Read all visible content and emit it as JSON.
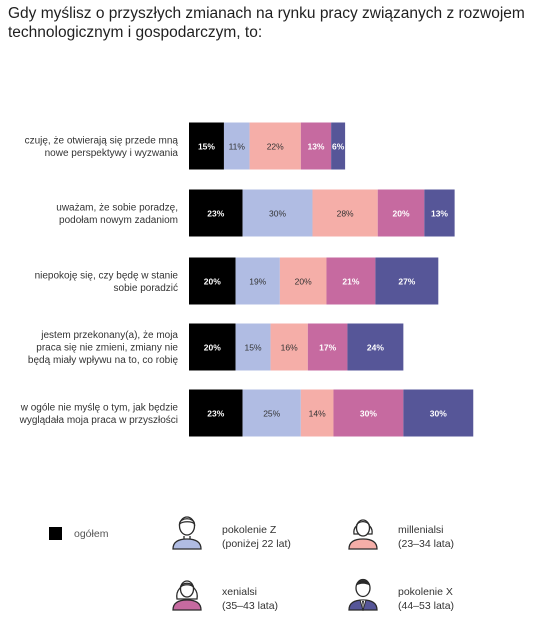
{
  "title": "Gdy myślisz o przyszłych zmianach na rynku pracy związanych z rozwojem technologicznym i gospodarczym, to:",
  "colors": {
    "ogolem": "#000000",
    "pokolenie_z": "#b0bce3",
    "millenialsi": "#f5aea8",
    "xenialsi": "#c66aa0",
    "pokolenie_x": "#565698"
  },
  "chart_data": {
    "type": "bar",
    "orientation": "horizontal",
    "stacked": true,
    "categories": [
      [
        "czuję, że otwierają się przede mną",
        "nowe perspektywy i wyzwania"
      ],
      [
        "uważam, że sobie poradzę,",
        "podołam nowym zadaniom"
      ],
      [
        "niepokoję się, czy będę w stanie",
        "sobie poradzić"
      ],
      [
        "jestem przekonany(a), że moja",
        "praca się nie zmieni, zmiany nie",
        "będą miały wpływu na to, co robię"
      ],
      [
        "w ogóle nie myślę o tym, jak będzie",
        "wyglądała moja praca w przyszłości"
      ]
    ],
    "series": [
      {
        "name": "ogółem",
        "values": [
          15,
          23,
          20,
          20,
          23
        ],
        "labels": [
          "15%",
          "23%",
          "20%",
          "20%",
          "23%"
        ]
      },
      {
        "name": "pokolenie Z",
        "values": [
          11,
          30,
          19,
          15,
          25
        ],
        "labels": [
          "11%",
          "30%",
          "19%",
          "15%",
          "25%"
        ]
      },
      {
        "name": "millenialsi",
        "values": [
          22,
          28,
          20,
          16,
          14
        ],
        "labels": [
          "22%",
          "28%",
          "20%",
          "16%",
          "14%"
        ]
      },
      {
        "name": "xenialsi",
        "values": [
          13,
          20,
          21,
          17,
          30
        ],
        "labels": [
          "13%",
          "20%",
          "21%",
          "17%",
          "30%"
        ]
      },
      {
        "name": "pokolenie X",
        "values": [
          6,
          13,
          27,
          24,
          30
        ],
        "labels": [
          "6%",
          "13%",
          "27%",
          "24%",
          "30%"
        ]
      }
    ],
    "unit": "%",
    "legend_position": "bottom",
    "grid": false
  },
  "legend": {
    "ogolem": {
      "label": "ogółem"
    },
    "pokolenie_z": {
      "line1": "pokolenie Z",
      "line2": "(poniżej 22 lat)",
      "icon": "man-icon"
    },
    "millenialsi": {
      "line1": "millenialsi",
      "line2": "(23–34 lata)",
      "icon": "woman-icon"
    },
    "xenialsi": {
      "line1": "xenialsi",
      "line2": "(35–43 lata)",
      "icon": "woman-long-hair-icon"
    },
    "pokolenie_x": {
      "line1": "pokolenie X",
      "line2": "(44–53 lata)",
      "icon": "businessman-icon"
    }
  }
}
